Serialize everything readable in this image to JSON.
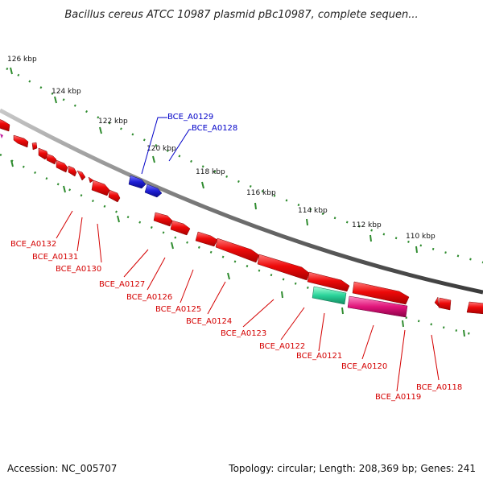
{
  "title": "Bacillus cereus ATCC 10987 plasmid pBc10987, complete sequen...",
  "footer": {
    "accession": "Accession: NC_005707",
    "summary": "Topology: circular; Length: 208,369 bp; Genes: 241"
  },
  "colors": {
    "background": "#ffffff",
    "backbone": "#8c8c8c",
    "ruler": "#2e8b2e",
    "gene_red": "#e8000b",
    "gene_blue": "#1f1fd6",
    "gene_teal": "#2ad39a",
    "gene_magenta": "#e0147a",
    "label_red": "#d40000",
    "label_blue": "#0000c8"
  },
  "ruler_labels": [
    "126 kbp",
    "124 kbp",
    "122 kbp",
    "120 kbp",
    "118 kbp",
    "116 kbp",
    "114 kbp",
    "112 kbp",
    "110 kbp"
  ],
  "gene_labels": [
    {
      "text": "BCE_A0129",
      "color": "blue"
    },
    {
      "text": "BCE_A0128",
      "color": "blue"
    },
    {
      "text": "BCE_A0132",
      "color": "red"
    },
    {
      "text": "BCE_A0131",
      "color": "red"
    },
    {
      "text": "BCE_A0130",
      "color": "red"
    },
    {
      "text": "BCE_A0127",
      "color": "red"
    },
    {
      "text": "BCE_A0126",
      "color": "red"
    },
    {
      "text": "BCE_A0125",
      "color": "red"
    },
    {
      "text": "BCE_A0124",
      "color": "red"
    },
    {
      "text": "BCE_A0123",
      "color": "red"
    },
    {
      "text": "BCE_A0122",
      "color": "red"
    },
    {
      "text": "BCE_A0121",
      "color": "red"
    },
    {
      "text": "BCE_A0120",
      "color": "red"
    },
    {
      "text": "BCE_A0119",
      "color": "red"
    },
    {
      "text": "BCE_A0118",
      "color": "red"
    }
  ]
}
